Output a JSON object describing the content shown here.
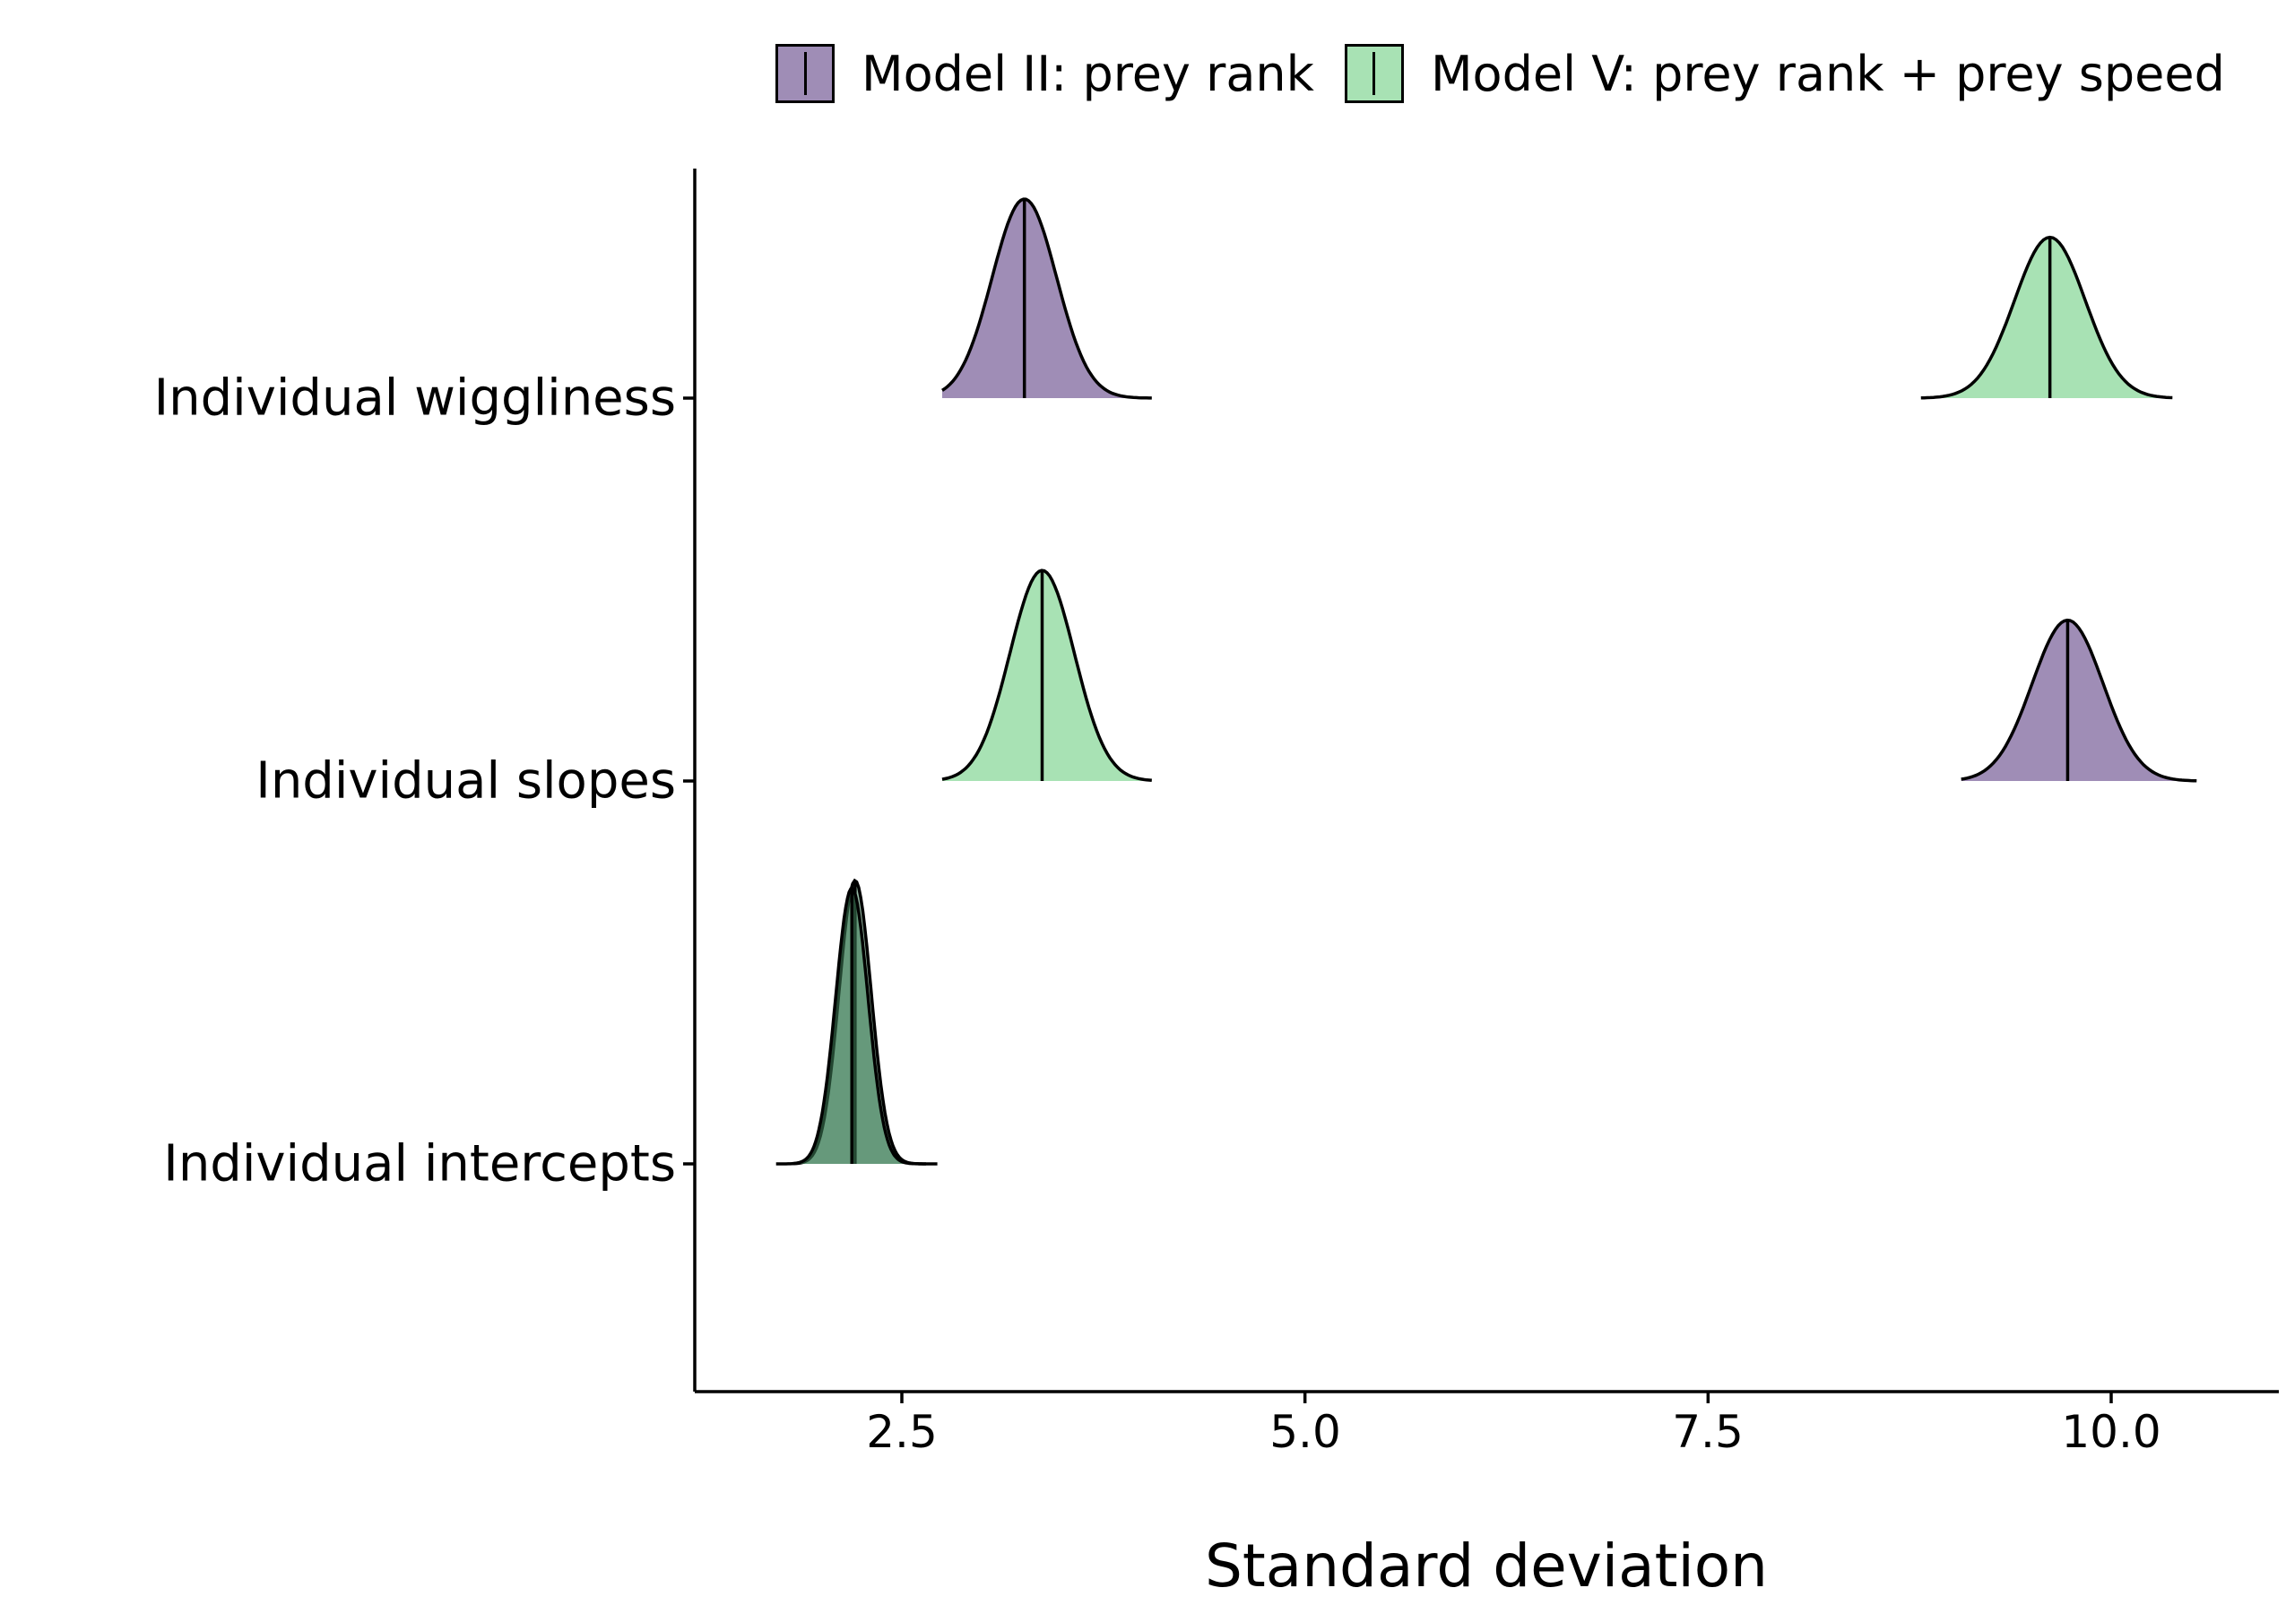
{
  "chart_data": {
    "type": "ridgeline-density",
    "xlabel": "Standard deviation",
    "ylabel": "",
    "xlim": [
      1.2,
      11.0
    ],
    "xticks": [
      "2.5",
      "5.0",
      "7.5",
      "10.0"
    ],
    "xtick_values": [
      2.5,
      5.0,
      7.5,
      10.0
    ],
    "categories": [
      "Individual wiggliness",
      "Individual slopes",
      "Individual intercepts"
    ],
    "legend_position": "top-right",
    "grid": false,
    "series": [
      {
        "name": "Model II: prey rank",
        "color": "#9f8db6",
        "distributions": [
          {
            "category": "Individual wiggliness",
            "median": 3.26,
            "range": [
              2.75,
              4.05
            ],
            "sd": 0.2,
            "peak_height": 0.52
          },
          {
            "category": "Individual slopes",
            "median": 9.73,
            "range": [
              9.07,
              10.53
            ],
            "sd": 0.22,
            "peak_height": 0.42
          },
          {
            "category": "Individual intercepts",
            "median": 2.21,
            "range": [
              1.72,
              2.72
            ],
            "sd": 0.1,
            "peak_height": 0.74
          }
        ]
      },
      {
        "name": "Model V: prey rank + prey speed",
        "color": "#a8e2b4",
        "distributions": [
          {
            "category": "Individual wiggliness",
            "median": 9.62,
            "range": [
              8.82,
              10.38
            ],
            "sd": 0.22,
            "peak_height": 0.42
          },
          {
            "category": "Individual slopes",
            "median": 3.37,
            "range": [
              2.75,
              4.05
            ],
            "sd": 0.2,
            "peak_height": 0.55
          },
          {
            "category": "Individual intercepts",
            "median": 2.19,
            "range": [
              1.82,
              2.65
            ],
            "sd": 0.1,
            "peak_height": 0.72
          }
        ]
      }
    ]
  }
}
